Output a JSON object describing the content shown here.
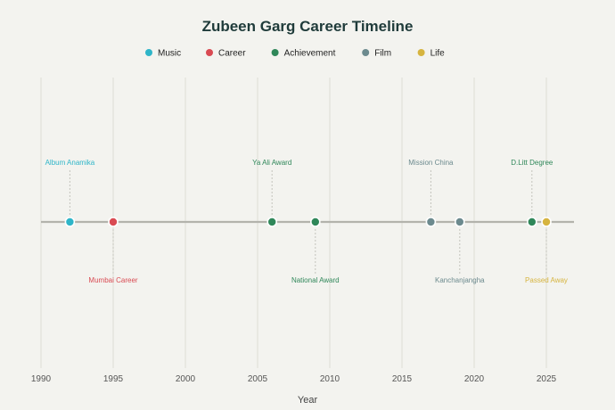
{
  "chart_data": {
    "type": "scatter",
    "title": "Zubeen Garg Career Timeline",
    "xlabel": "Year",
    "ylabel": "",
    "xlim": [
      1990,
      2027
    ],
    "xticks": [
      1990,
      1995,
      2000,
      2005,
      2010,
      2015,
      2020,
      2025
    ],
    "grid": true,
    "legend_position": "top",
    "categories": [
      {
        "name": "Music",
        "color": "#2eb5c8"
      },
      {
        "name": "Career",
        "color": "#d94a52"
      },
      {
        "name": "Achievement",
        "color": "#2f8759"
      },
      {
        "name": "Film",
        "color": "#6c8a8e"
      },
      {
        "name": "Life",
        "color": "#d6b43f"
      }
    ],
    "events": [
      {
        "year": 1992,
        "label": "Album Anamika",
        "category": "Music",
        "label_side": "above"
      },
      {
        "year": 1995,
        "label": "Mumbai Career",
        "category": "Career",
        "label_side": "below"
      },
      {
        "year": 2006,
        "label": "Ya Ali Award",
        "category": "Achievement",
        "label_side": "above"
      },
      {
        "year": 2009,
        "label": "National Award",
        "category": "Achievement",
        "label_side": "below"
      },
      {
        "year": 2017,
        "label": "Mission China",
        "category": "Film",
        "label_side": "above"
      },
      {
        "year": 2019,
        "label": "Kanchanjangha",
        "category": "Film",
        "label_side": "below"
      },
      {
        "year": 2024,
        "label": "D.Litt Degree",
        "category": "Achievement",
        "label_side": "above"
      },
      {
        "year": 2025,
        "label": "Passed Away",
        "category": "Life",
        "label_side": "below"
      }
    ]
  }
}
